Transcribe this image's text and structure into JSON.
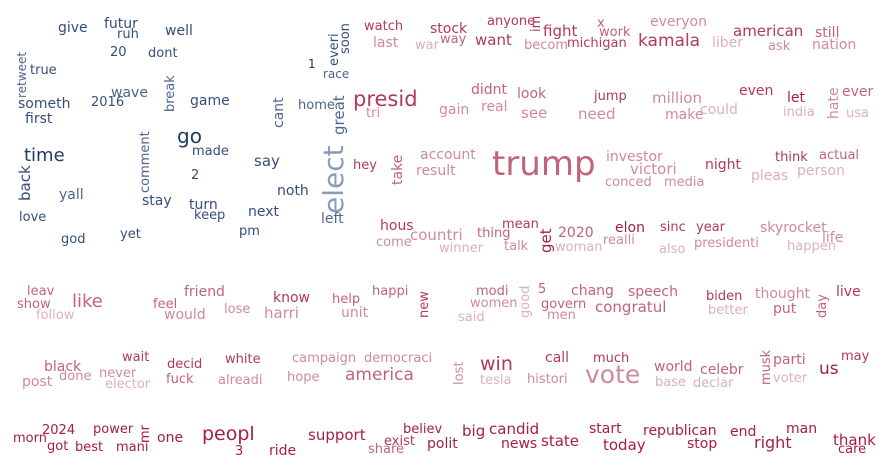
{
  "words": {
    "give": "give",
    "futur": "futur",
    "ruh": "ruh",
    "well": "well",
    "retweet": "retweet",
    "w20": "20",
    "dont": "dont",
    "true": "true",
    "one1": "1",
    "everi": "everi",
    "soon": "soon",
    "race": "race",
    "break": "break",
    "wave": "wave",
    "somethi": "someth",
    "w2016": "2016",
    "game": "game",
    "first": "first",
    "home": "home",
    "cant": "cant",
    "great": "great",
    "go": "go",
    "made": "made",
    "comment": "comment",
    "time": "time",
    "say": "say",
    "back": "back",
    "two2": "2",
    "noth": "noth",
    "elect": "elect",
    "yall": "yall",
    "stay": "stay",
    "turn": "turn",
    "keep": "keep",
    "next": "next",
    "left": "left",
    "love": "love",
    "pm": "pm",
    "god": "god",
    "yet": "yet",
    "watch": "watch",
    "stock": "stock",
    "anyone": "anyone",
    "im": "im",
    "fight": "fight",
    "x": "x",
    "work": "work",
    "everyon": "everyon",
    "american": "american",
    "still": "still",
    "last": "last",
    "war": "war",
    "way": "way",
    "want": "want",
    "becom": "becom",
    "michigan": "michigan",
    "kamala": "kamala",
    "liber": "liber",
    "ask": "ask",
    "nation": "nation",
    "presid": "presid",
    "didnt": "didnt",
    "look": "look",
    "jump": "jump",
    "million": "million",
    "even": "even",
    "let": "let",
    "hate": "hate",
    "ever": "ever",
    "tri": "tri",
    "gain": "gain",
    "real": "real",
    "see": "see",
    "need": "need",
    "make": "make",
    "could": "could",
    "india": "india",
    "usa": "usa",
    "take": "take",
    "hey": "hey",
    "account": "account",
    "trump": "trump",
    "investor": "investor",
    "think": "think",
    "actual": "actual",
    "result": "result",
    "victori": "victori",
    "night": "night",
    "person": "person",
    "conced": "conced",
    "media": "media",
    "pleas": "pleas",
    "hous": "hous",
    "mean": "mean",
    "get": "get",
    "w2020": "2020",
    "elon": "elon",
    "sinc": "sinc",
    "year": "year",
    "skyrocket": "skyrocket",
    "come": "come",
    "countri": "countri",
    "thing": "thing",
    "realli": "realli",
    "life": "life",
    "winner": "winner",
    "talk": "talk",
    "woman": "woman",
    "also": "also",
    "presidenti": "presidenti",
    "happen": "happen",
    "leav": "leav",
    "show": "show",
    "like": "like",
    "friend": "friend",
    "feel": "feel",
    "know": "know",
    "help": "help",
    "happi": "happi",
    "new": "new",
    "modi": "modi",
    "good": "good",
    "five5": "5",
    "chang": "chang",
    "speech": "speech",
    "biden": "biden",
    "thought": "thought",
    "day": "day",
    "live": "live",
    "follow": "follow",
    "would": "would",
    "lose": "lose",
    "harri": "harri",
    "unit": "unit",
    "women": "women",
    "said": "said",
    "govern": "govern",
    "men": "men",
    "congratul": "congratul",
    "better": "better",
    "put": "put",
    "wait": "wait",
    "black": "black",
    "decid": "decid",
    "white": "white",
    "campaign": "campaign",
    "democraci": "democraci",
    "lost": "lost",
    "win": "win",
    "call": "call",
    "much": "much",
    "world": "world",
    "musk": "musk",
    "parti": "parti",
    "may": "may",
    "post": "post",
    "done": "done",
    "never": "never",
    "elector": "elector",
    "fuck": "fuck",
    "alreadi": "alreadi",
    "hope": "hope",
    "america": "america",
    "tesla": "tesla",
    "histori": "histori",
    "vote": "vote",
    "celebr": "celebr",
    "base": "base",
    "declar": "declar",
    "us": "us",
    "voter": "voter",
    "w2024": "2024",
    "power": "power",
    "mr": "mr",
    "morn": "morn",
    "got": "got",
    "best": "best",
    "mani": "mani",
    "one": "one",
    "peopl": "peopl",
    "three3": "3",
    "ride": "ride",
    "support": "support",
    "exist": "exist",
    "believ": "believ",
    "big": "big",
    "candid": "candid",
    "share": "share",
    "polit": "polit",
    "news": "news",
    "state": "state",
    "start": "start",
    "today": "today",
    "republican": "republican",
    "stop": "stop",
    "end": "end",
    "right": "right",
    "man": "man",
    "thank": "thank",
    "care": "care"
  }
}
